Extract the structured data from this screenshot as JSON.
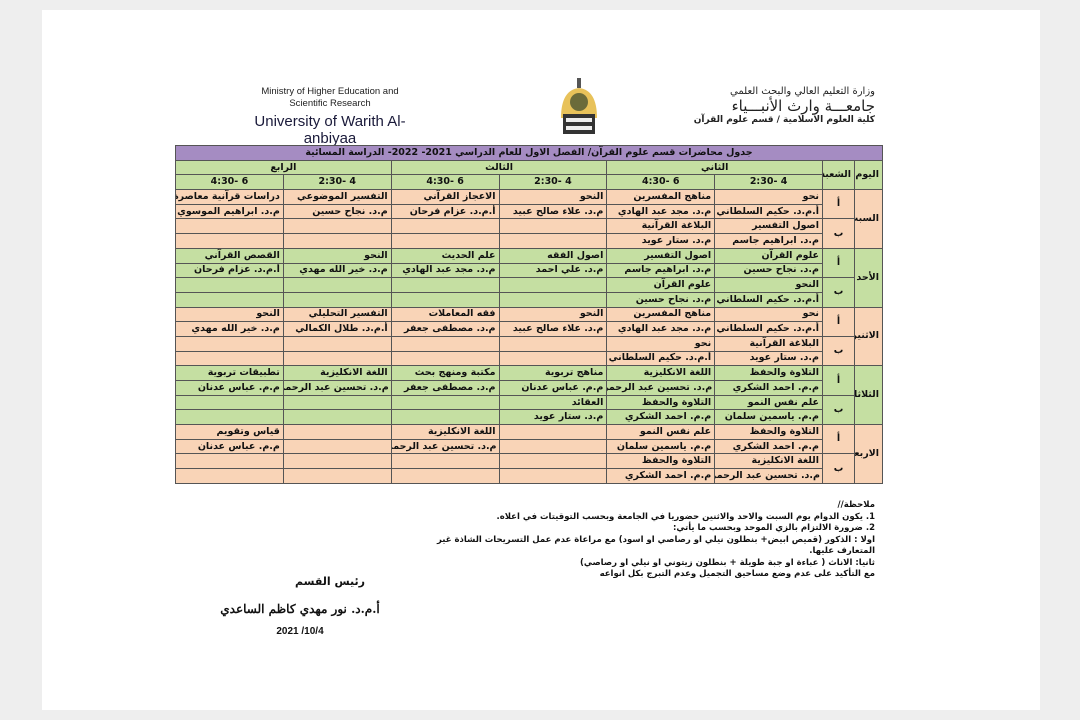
{
  "header": {
    "en_line1": "Ministry of Higher Education and",
    "en_line2": "Scientific Research",
    "en_line3": "University of Warith Al- anbiyaa",
    "ar_line1": "وزارة التعليم العالي والبحث العلمي",
    "ar_line2": "جامعـــة وارث الأنبـــياء",
    "ar_line3": "كلية العلوم الاسلامية / قسم علوم القرآن",
    "logo_icon": "university-seal"
  },
  "table": {
    "title": "جدول محاضرات قسم علوم القرآن/ الفصل الاول للعام الدراسي 2021- 2022- الدراسة المسائية",
    "day_header": "اليوم",
    "section_header": "الشعبة",
    "years": [
      "الثاني",
      "الثالث",
      "الرابع"
    ],
    "times": [
      "4 -2:30",
      "6 -4:30",
      "4 -2:30",
      "6 -4:30",
      "4 -2:30",
      "6 -4:30"
    ],
    "colors": {
      "orange": "#f9d4b7",
      "green": "#c5dfa2",
      "purple": "#a58cc2"
    },
    "days": [
      {
        "name": "السبت",
        "color": "orange",
        "sections": [
          {
            "label": "أ",
            "rows": [
              [
                "نحو",
                "مناهج المفسرين",
                "النحو",
                "الاعجاز القرآني",
                "التفسير الموضوعي",
                "دراسات قرآنية معاصرة"
              ],
              [
                "أ.م.د. حكيم السلطاني",
                "م.د. مجد عبد الهادي",
                "م.د. علاء صالح عبيد",
                "أ.م.د. عزام فرحان",
                "م.د. نجاح حسين",
                "م.د. ابراهيم الموسوي"
              ]
            ]
          },
          {
            "label": "ب",
            "rows": [
              [
                "اصول التفسير",
                "البلاغة القرآنية",
                "",
                "",
                "",
                ""
              ],
              [
                "م.د. ابراهيم جاسم",
                "م.د. ستار عويد",
                "",
                "",
                "",
                ""
              ]
            ]
          }
        ]
      },
      {
        "name": "الأحد",
        "color": "green",
        "sections": [
          {
            "label": "أ",
            "rows": [
              [
                "علوم القرآن",
                "اصول التفسير",
                "اصول الفقه",
                "علم الحديث",
                "النحو",
                "القصص القرآني"
              ],
              [
                "م.د. نجاح حسين",
                "م.د. ابراهيم جاسم",
                "م.د. علي احمد",
                "م.د. مجد عبد الهادي",
                "م.د. خير الله مهدي",
                "أ.م.د. عزام فرحان"
              ]
            ]
          },
          {
            "label": "ب",
            "rows": [
              [
                "النحو",
                "علوم القرآن",
                "",
                "",
                "",
                ""
              ],
              [
                "أ.م.د. حكيم السلطاني",
                "م.د. نجاح حسين",
                "",
                "",
                "",
                ""
              ]
            ]
          }
        ]
      },
      {
        "name": "الاثنين",
        "color": "orange",
        "sections": [
          {
            "label": "أ",
            "rows": [
              [
                "نحو",
                "مناهج المفسرين",
                "النحو",
                "فقه المعاملات",
                "التفسير التحليلي",
                "النحو"
              ],
              [
                "أ.م.د. حكيم السلطاني",
                "م.د. مجد عبد الهادي",
                "م.د. علاء صالح عبيد",
                "م.د. مصطفى جعفر",
                "أ.م.د. طلال الكمالي",
                "م.د. خير الله مهدي"
              ]
            ]
          },
          {
            "label": "ب",
            "rows": [
              [
                "البلاغة القرآنية",
                "نحو",
                "",
                "",
                "",
                ""
              ],
              [
                "م.د. ستار عويد",
                "أ.م.د. حكيم السلطاني",
                "",
                "",
                "",
                ""
              ]
            ]
          }
        ]
      },
      {
        "name": "الثلاثاء",
        "color": "green",
        "sections": [
          {
            "label": "أ",
            "rows": [
              [
                "التلاوة والحفظ",
                "اللغة الانكليزية",
                "مناهج تربوية",
                "مكتبة ومنهج بحث",
                "اللغة الانكليزية",
                "تطبيقات تربوية"
              ],
              [
                "م.م. احمد الشكري",
                "م.د. تحسين عبد الرحمن",
                "م.م. عباس عدنان",
                "م.د. مصطفى جعفر",
                "م.د. تحسين عبد الرحمن",
                "م.م. عباس عدنان"
              ]
            ]
          },
          {
            "label": "ب",
            "rows": [
              [
                "علم نفس النمو",
                "التلاوة والحفظ",
                "العقائد",
                "",
                "",
                ""
              ],
              [
                "م.م. ياسمين سلمان",
                "م.م. احمد الشكري",
                "م.د. ستار عويد",
                "",
                "",
                ""
              ]
            ]
          }
        ]
      },
      {
        "name": "الاربعاء",
        "color": "orange",
        "sections": [
          {
            "label": "أ",
            "rows": [
              [
                "التلاوة والحفظ",
                "علم نفس النمو",
                "",
                "اللغة الانكليزية",
                "",
                "قياس وتقويم"
              ],
              [
                "م.م. احمد الشكري",
                "م.م. ياسمين سلمان",
                "",
                "م.د. تحسين عبد الرحمن",
                "",
                "م.م. عباس عدنان"
              ]
            ]
          },
          {
            "label": "ب",
            "rows": [
              [
                "اللغة الانكليزية",
                "التلاوة والحفظ",
                "",
                "",
                "",
                ""
              ],
              [
                "م.د. تحسين عبد الرحمن",
                "م.م. احمد الشكري",
                "",
                "",
                "",
                ""
              ]
            ]
          }
        ]
      }
    ]
  },
  "notes": [
    "ملاحظة//",
    "1. يكون الدوام يوم السبت والاحد والاثنين حضوريا في الجامعة وبحسب التوقيتات في اعلاه.",
    "2. ضرورة الالتزام بالزي الموحد وبحسب ما يأتي:",
    "اولا : الذكور (قميص ابيض+ بنطلون نيلي او رصاصي او اسود) مع مراعاة عدم عمل التسريحات الشاذة غير المتعارف عليها.",
    "ثانيا: الاناث ( عباءة او جبة طويلة + بنطلون زيتوني او نيلي او رصاصي)",
    "مع التأكيد على عدم وضع مساحيق التجميل وعدم التبرج بكل انواعه"
  ],
  "signature": {
    "title": "رئيس القسم",
    "name": "أ.م.د. نور مهدي كاظم الساعدي",
    "date": "2021 /10/4"
  }
}
